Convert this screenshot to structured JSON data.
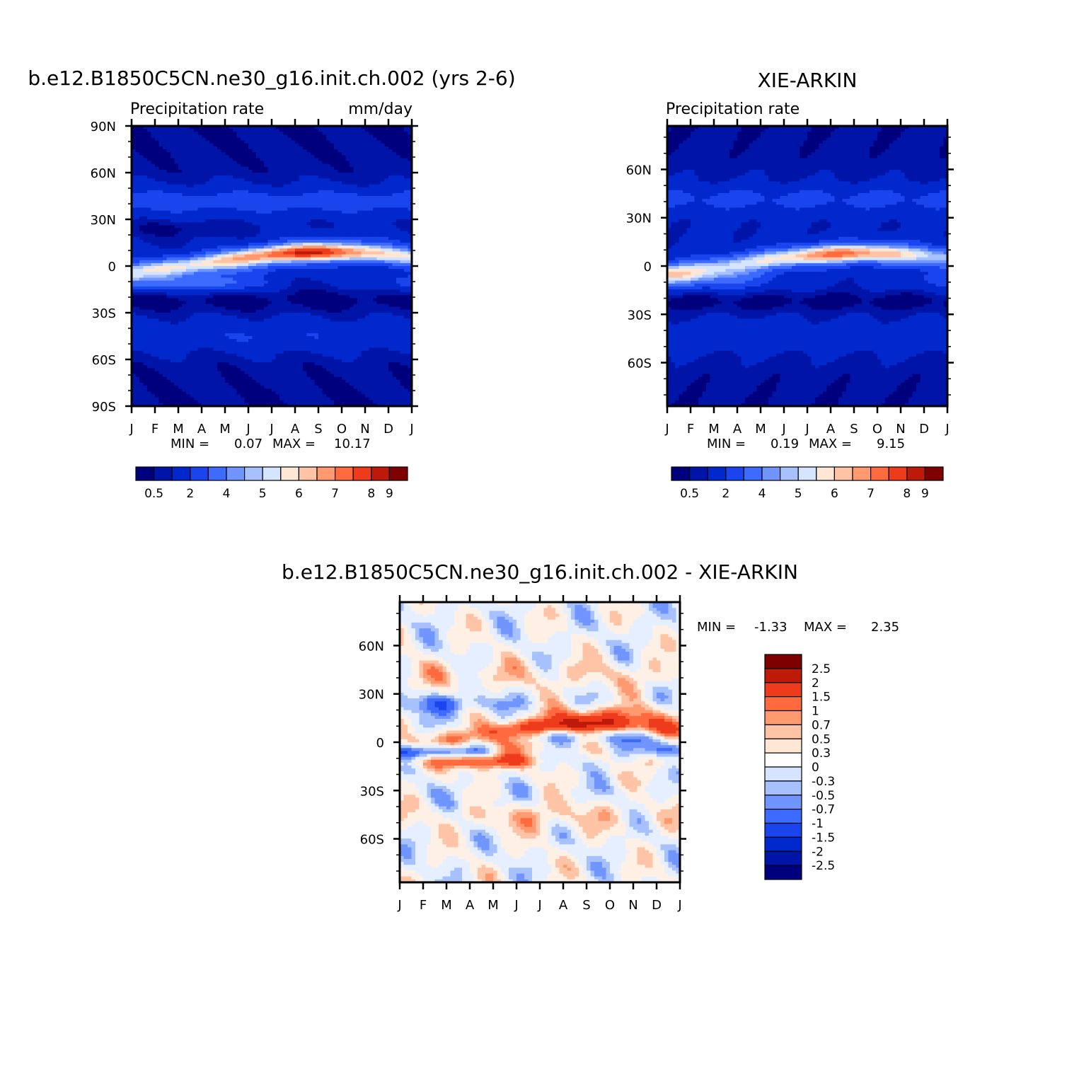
{
  "colors": {
    "scale_15": [
      "#00007f",
      "#0014a8",
      "#0028cd",
      "#1a44ee",
      "#3d6bff",
      "#7095ff",
      "#a7c1ff",
      "#d5e5ff",
      "#ffe7d6",
      "#ffc4a6",
      "#ff9a70",
      "#ff6a3e",
      "#ed3b1c",
      "#bd1a0a",
      "#7f0000"
    ],
    "scale_diff": [
      "#00007f",
      "#0014a8",
      "#0028cd",
      "#1a44ee",
      "#3d6bff",
      "#7095ff",
      "#a7c1ff",
      "#d5e5ff",
      "#ffe7d6",
      "#ffc4a6",
      "#ff9a70",
      "#ff6a3e",
      "#ed3b1c",
      "#bd1a0a",
      "#7f0000"
    ]
  },
  "chart_data": [
    {
      "type": "heatmap",
      "id": "model",
      "title": "b.e12.B1850C5CN.ne30_g16.init.ch.002 (yrs 2-6)",
      "left_string": "Precipitation rate",
      "right_string": "mm/day",
      "x_tick_labels": [
        "J",
        "F",
        "M",
        "A",
        "M",
        "J",
        "J",
        "A",
        "S",
        "O",
        "N",
        "D",
        "J"
      ],
      "y_tick_labels": [
        "90N",
        "60N",
        "30N",
        "0",
        "30S",
        "60S",
        "90S"
      ],
      "y_ticks": [
        90,
        60,
        30,
        0,
        -30,
        -60,
        -90
      ],
      "ylim": [
        -90,
        90
      ],
      "min_label": "MIN =",
      "min_value": "0.07",
      "max_label": "MAX =",
      "max_value": "10.17",
      "colorbar_labels": [
        "0.5",
        "2",
        "4",
        "5",
        "6",
        "7",
        "8",
        "9"
      ],
      "itcz_peak_month": 7.5,
      "itcz_peak_value": 10.17
    },
    {
      "type": "heatmap",
      "id": "obs",
      "title": "XIE-ARKIN",
      "left_string": "Precipitation rate",
      "right_string": "",
      "x_tick_labels": [
        "J",
        "F",
        "M",
        "A",
        "M",
        "J",
        "J",
        "A",
        "S",
        "O",
        "N",
        "D",
        "J"
      ],
      "y_tick_labels": [
        "60N",
        "30N",
        "0",
        "30S",
        "60S"
      ],
      "y_ticks": [
        60,
        30,
        0,
        -30,
        -60
      ],
      "ylim": [
        -87,
        87
      ],
      "min_label": "MIN =",
      "min_value": "0.19",
      "max_label": "MAX =",
      "max_value": "9.15",
      "colorbar_labels": [
        "0.5",
        "2",
        "4",
        "5",
        "6",
        "7",
        "8",
        "9"
      ],
      "itcz_peak_month": 7.5,
      "itcz_peak_value": 9.15
    },
    {
      "type": "heatmap",
      "id": "diff",
      "title": "b.e12.B1850C5CN.ne30_g16.init.ch.002 - XIE-ARKIN",
      "left_string": "",
      "right_string": "",
      "x_tick_labels": [
        "J",
        "F",
        "M",
        "A",
        "M",
        "J",
        "J",
        "A",
        "S",
        "O",
        "N",
        "D",
        "J"
      ],
      "y_tick_labels": [
        "60N",
        "30N",
        "0",
        "30S",
        "60S"
      ],
      "y_ticks": [
        60,
        30,
        0,
        -30,
        -60
      ],
      "ylim": [
        -87,
        87
      ],
      "min_label": "MIN =",
      "min_value": "-1.33",
      "max_label": "MAX =",
      "max_value": "2.35",
      "colorbar_labels": [
        "2.5",
        "2",
        "1.5",
        "1",
        "0.7",
        "0.5",
        "0.3",
        "0",
        "-0.3",
        "-0.5",
        "-0.7",
        "-1",
        "-1.5",
        "-2",
        "-2.5"
      ]
    }
  ]
}
